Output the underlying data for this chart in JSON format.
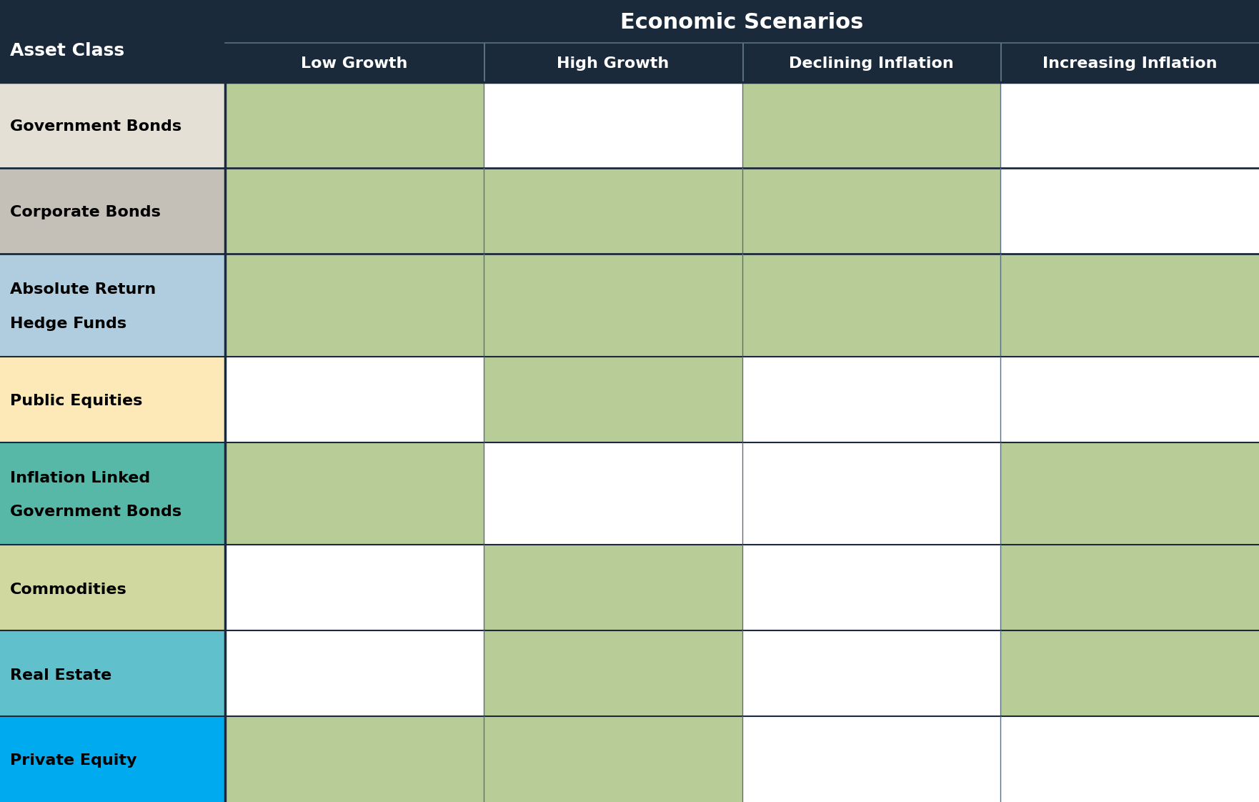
{
  "header_bg": "#1b2a3b",
  "header_text_color": "#ffffff",
  "economic_scenarios_label": "Economic Scenarios",
  "asset_class_label": "Asset Class",
  "columns": [
    "Low Growth",
    "High Growth",
    "Declining Inflation",
    "Increasing Inflation"
  ],
  "rows": [
    {
      "label_lines": [
        "Government Bonds"
      ],
      "row_bg": "#e5e0d5",
      "filled": [
        true,
        false,
        true,
        false
      ]
    },
    {
      "label_lines": [
        "Corporate Bonds"
      ],
      "row_bg": "#c4c0b8",
      "filled": [
        true,
        true,
        true,
        false
      ]
    },
    {
      "label_lines": [
        "Absolute Return",
        "Hedge Funds"
      ],
      "row_bg": "#b0ccdf",
      "filled": [
        true,
        true,
        true,
        true
      ]
    },
    {
      "label_lines": [
        "Public Equities"
      ],
      "row_bg": "#fde8b8",
      "filled": [
        false,
        true,
        false,
        false
      ]
    },
    {
      "label_lines": [
        "Inflation Linked",
        "Government Bonds"
      ],
      "row_bg": "#57b8a8",
      "filled": [
        true,
        false,
        false,
        true
      ]
    },
    {
      "label_lines": [
        "Commodities"
      ],
      "row_bg": "#d0d8a0",
      "filled": [
        false,
        true,
        false,
        true
      ]
    },
    {
      "label_lines": [
        "Real Estate"
      ],
      "row_bg": "#60c0cc",
      "filled": [
        false,
        true,
        false,
        true
      ]
    },
    {
      "label_lines": [
        "Private Equity"
      ],
      "row_bg": "#00aaee",
      "filled": [
        true,
        true,
        false,
        false
      ]
    }
  ],
  "green_fill": "#b8cc98",
  "white_fill": "#ffffff",
  "row_divider_color": "#1b2a3b",
  "col_divider_color": "#5a7080"
}
